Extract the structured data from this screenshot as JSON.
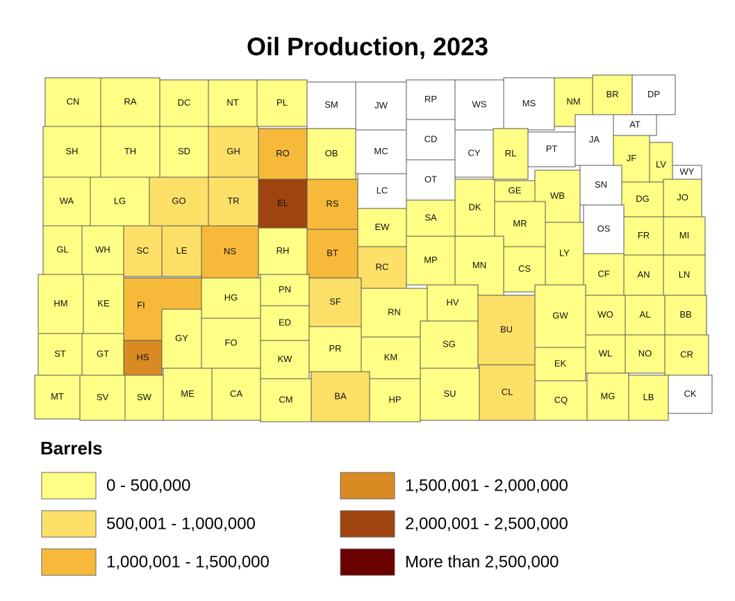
{
  "title": "Oil Production, 2023",
  "legend": {
    "title": "Barrels",
    "classes": [
      {
        "label": "0 - 500,000",
        "color": "#ffff85"
      },
      {
        "label": "500,001 - 1,000,000",
        "color": "#fde068"
      },
      {
        "label": "1,000,001 - 1,500,000",
        "color": "#f6b93a"
      },
      {
        "label": "1,500,001 - 2,000,000",
        "color": "#d98a23"
      },
      {
        "label": "2,000,001 - 2,500,000",
        "color": "#a0440f"
      },
      {
        "label": "More than 2,500,000",
        "color": "#6b0000"
      }
    ]
  },
  "no_data_color": "#ffffff",
  "counties": [
    {
      "label": "CN",
      "class": 0
    },
    {
      "label": "RA",
      "class": 0
    },
    {
      "label": "DC",
      "class": 0
    },
    {
      "label": "NT",
      "class": 0
    },
    {
      "label": "PL",
      "class": 0
    },
    {
      "label": "SM",
      "class": null
    },
    {
      "label": "JW",
      "class": null
    },
    {
      "label": "RP",
      "class": null
    },
    {
      "label": "WS",
      "class": null
    },
    {
      "label": "MS",
      "class": null
    },
    {
      "label": "NM",
      "class": 0
    },
    {
      "label": "BR",
      "class": 0
    },
    {
      "label": "DP",
      "class": null
    },
    {
      "label": "SH",
      "class": 0
    },
    {
      "label": "TH",
      "class": 0
    },
    {
      "label": "SD",
      "class": 0
    },
    {
      "label": "GH",
      "class": 1
    },
    {
      "label": "RO",
      "class": 2
    },
    {
      "label": "OB",
      "class": 0
    },
    {
      "label": "MC",
      "class": null
    },
    {
      "label": "CD",
      "class": null
    },
    {
      "label": "CY",
      "class": null
    },
    {
      "label": "RL",
      "class": 0
    },
    {
      "label": "PT",
      "class": null
    },
    {
      "label": "JA",
      "class": null
    },
    {
      "label": "AT",
      "class": null
    },
    {
      "label": "JF",
      "class": 0
    },
    {
      "label": "LV",
      "class": 0
    },
    {
      "label": "WY",
      "class": null
    },
    {
      "label": "WA",
      "class": 0
    },
    {
      "label": "LG",
      "class": 0
    },
    {
      "label": "GO",
      "class": 1
    },
    {
      "label": "TR",
      "class": 1
    },
    {
      "label": "EL",
      "class": 4
    },
    {
      "label": "RS",
      "class": 2
    },
    {
      "label": "LC",
      "class": null
    },
    {
      "label": "OT",
      "class": null
    },
    {
      "label": "DK",
      "class": 0
    },
    {
      "label": "GE",
      "class": 0
    },
    {
      "label": "WB",
      "class": 0
    },
    {
      "label": "SN",
      "class": null
    },
    {
      "label": "DG",
      "class": 0
    },
    {
      "label": "JO",
      "class": 0
    },
    {
      "label": "GL",
      "class": 0
    },
    {
      "label": "WH",
      "class": 0
    },
    {
      "label": "SC",
      "class": 1
    },
    {
      "label": "LE",
      "class": 1
    },
    {
      "label": "NS",
      "class": 2
    },
    {
      "label": "RH",
      "class": 0
    },
    {
      "label": "BT",
      "class": 2
    },
    {
      "label": "EW",
      "class": 0
    },
    {
      "label": "SA",
      "class": 0
    },
    {
      "label": "MR",
      "class": 0
    },
    {
      "label": "LY",
      "class": 0
    },
    {
      "label": "OS",
      "class": null
    },
    {
      "label": "FR",
      "class": 0
    },
    {
      "label": "MI",
      "class": 0
    },
    {
      "label": "RC",
      "class": 1
    },
    {
      "label": "MP",
      "class": 0
    },
    {
      "label": "MN",
      "class": 0
    },
    {
      "label": "CS",
      "class": 0
    },
    {
      "label": "CF",
      "class": 0
    },
    {
      "label": "AN",
      "class": 0
    },
    {
      "label": "LN",
      "class": 0
    },
    {
      "label": "HM",
      "class": 0
    },
    {
      "label": "KE",
      "class": 0
    },
    {
      "label": "FI",
      "class": 2
    },
    {
      "label": "HG",
      "class": 0
    },
    {
      "label": "PN",
      "class": 0
    },
    {
      "label": "SF",
      "class": 1
    },
    {
      "label": "RN",
      "class": 0
    },
    {
      "label": "HV",
      "class": 0
    },
    {
      "label": "BU",
      "class": 1
    },
    {
      "label": "GW",
      "class": 0
    },
    {
      "label": "WO",
      "class": 0
    },
    {
      "label": "AL",
      "class": 0
    },
    {
      "label": "BB",
      "class": 0
    },
    {
      "label": "ST",
      "class": 0
    },
    {
      "label": "GT",
      "class": 0
    },
    {
      "label": "HS",
      "class": 3
    },
    {
      "label": "GY",
      "class": 0
    },
    {
      "label": "FO",
      "class": 0
    },
    {
      "label": "ED",
      "class": 0
    },
    {
      "label": "KW",
      "class": 0
    },
    {
      "label": "PR",
      "class": 0
    },
    {
      "label": "KM",
      "class": 0
    },
    {
      "label": "SG",
      "class": 0
    },
    {
      "label": "EK",
      "class": 0
    },
    {
      "label": "WL",
      "class": 0
    },
    {
      "label": "NO",
      "class": 0
    },
    {
      "label": "CR",
      "class": 0
    },
    {
      "label": "MT",
      "class": 0
    },
    {
      "label": "SV",
      "class": 0
    },
    {
      "label": "SW",
      "class": 0
    },
    {
      "label": "ME",
      "class": 0
    },
    {
      "label": "CA",
      "class": 0
    },
    {
      "label": "CM",
      "class": 0
    },
    {
      "label": "BA",
      "class": 1
    },
    {
      "label": "HP",
      "class": 0
    },
    {
      "label": "SU",
      "class": 0
    },
    {
      "label": "CL",
      "class": 1
    },
    {
      "label": "CQ",
      "class": 0
    },
    {
      "label": "MG",
      "class": 0
    },
    {
      "label": "LB",
      "class": 0
    },
    {
      "label": "CK",
      "class": null
    }
  ]
}
